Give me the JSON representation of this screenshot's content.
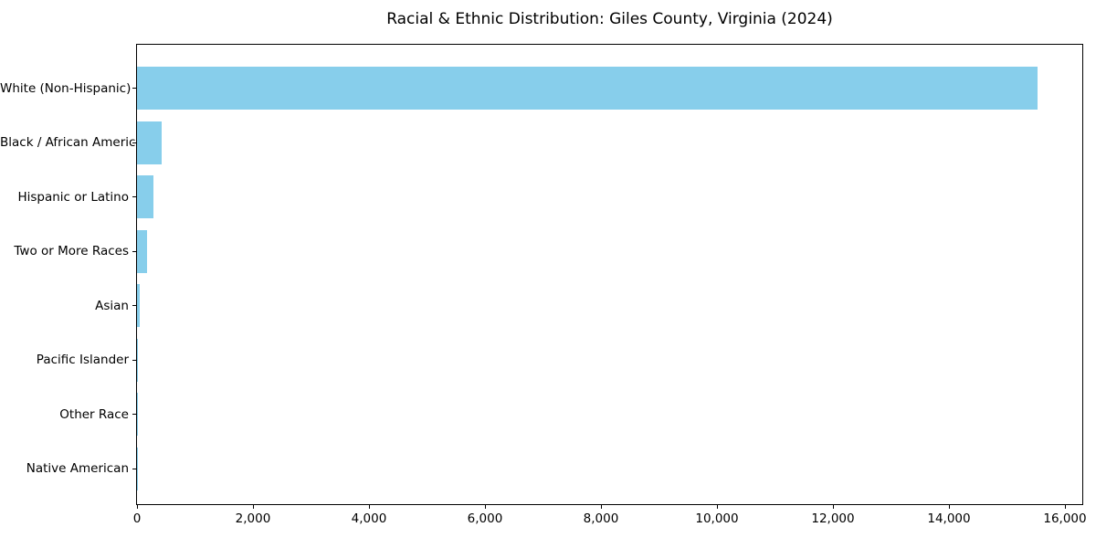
{
  "figure": {
    "title": "Racial & Ethnic Distribution: Giles County, Virginia (2024)"
  },
  "chart_data": {
    "type": "bar",
    "orientation": "horizontal",
    "title": "Racial & Ethnic Distribution: Giles County, Virginia (2024)",
    "categories": [
      "White (Non-Hispanic)",
      "Black / African American",
      "Hispanic or Latino",
      "Two or More Races",
      "Asian",
      "Pacific Islander",
      "Other Race",
      "Native American"
    ],
    "values": [
      15520,
      420,
      280,
      175,
      55,
      10,
      5,
      2
    ],
    "xlabel": "",
    "ylabel": "",
    "xlim": [
      0,
      16300
    ],
    "x_ticks": [
      0,
      2000,
      4000,
      6000,
      8000,
      10000,
      12000,
      14000,
      16000
    ],
    "x_tick_labels": [
      "0",
      "2,000",
      "4,000",
      "6,000",
      "8,000",
      "10,000",
      "12,000",
      "14,000",
      "16,000"
    ],
    "bar_color": "#87CEEB",
    "axis_color": "#000000",
    "text_color": "#000000",
    "grid": false,
    "legend": null
  }
}
